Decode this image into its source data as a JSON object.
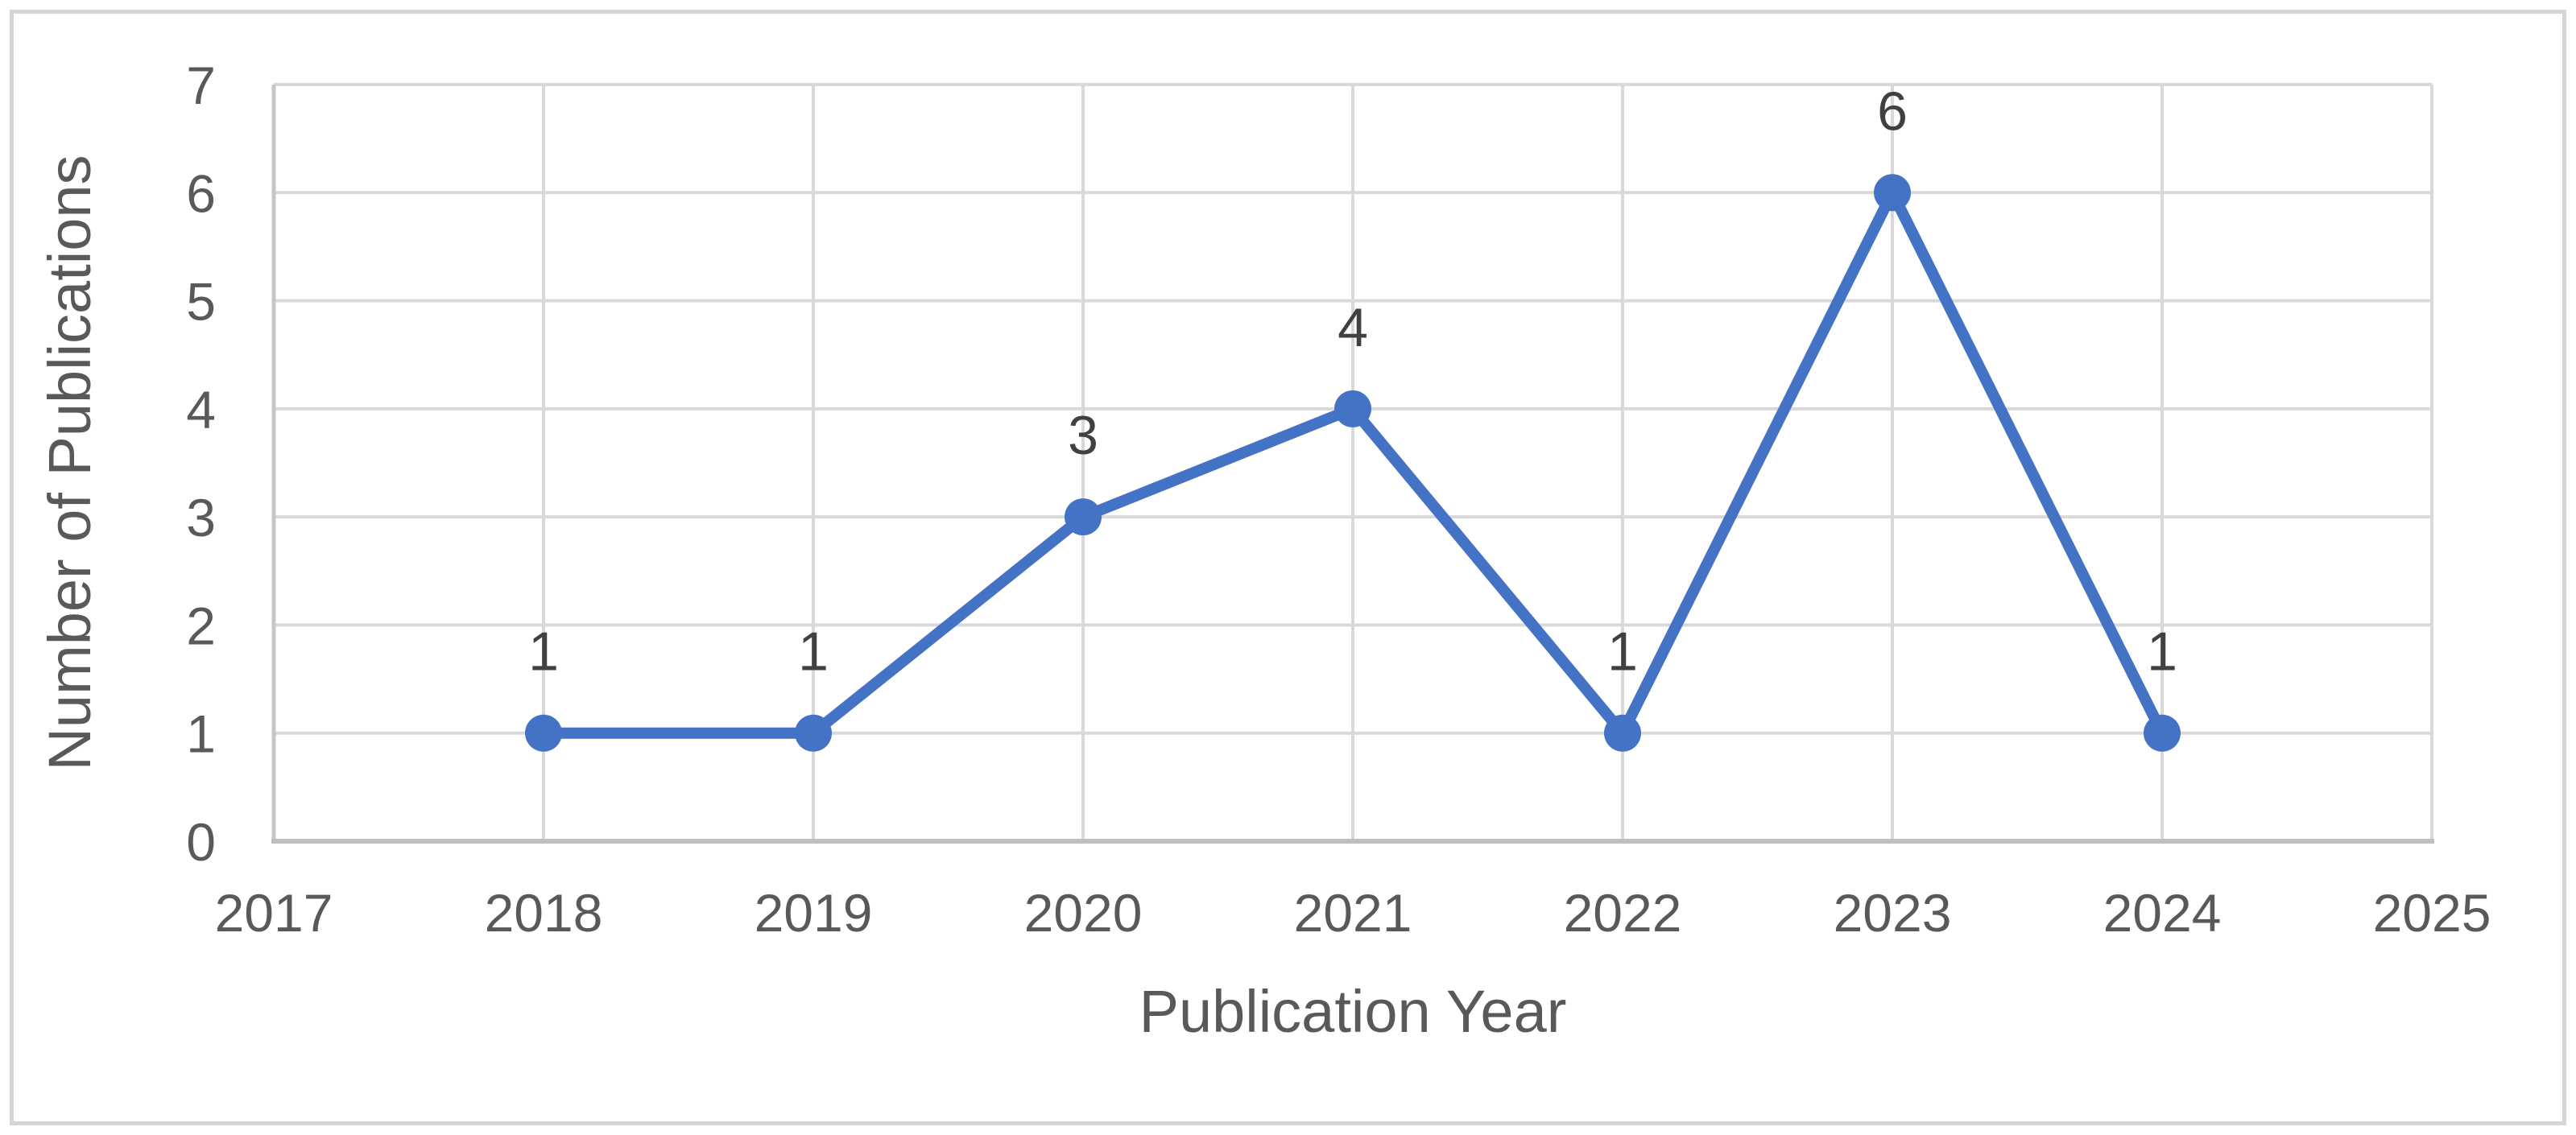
{
  "figure": {
    "background": "#FFFFFF",
    "border_color": "#D5D5D5"
  },
  "chart_data": {
    "type": "line",
    "x": [
      2018,
      2019,
      2020,
      2021,
      2022,
      2023,
      2024
    ],
    "values": [
      1,
      1,
      3,
      4,
      1,
      6,
      1
    ],
    "data_labels": [
      "1",
      "1",
      "3",
      "4",
      "1",
      "6",
      "1"
    ],
    "xlabel": "Publication Year",
    "ylabel": "Number of Publications",
    "x_ticks": [
      2017,
      2018,
      2019,
      2020,
      2021,
      2022,
      2023,
      2024,
      2025
    ],
    "y_ticks": [
      0,
      1,
      2,
      3,
      4,
      5,
      6,
      7
    ],
    "xlim": [
      2017,
      2025
    ],
    "ylim": [
      0,
      7
    ],
    "grid": true,
    "legend": "none",
    "line_color": "#4472C4",
    "marker": "circle",
    "gridline_color": "#D9D9D9",
    "axis_line_color": "#BFBFBF",
    "left_edge_color": "#C6C6C6",
    "tick_label_color": "#595959",
    "data_label_color": "#404040"
  }
}
